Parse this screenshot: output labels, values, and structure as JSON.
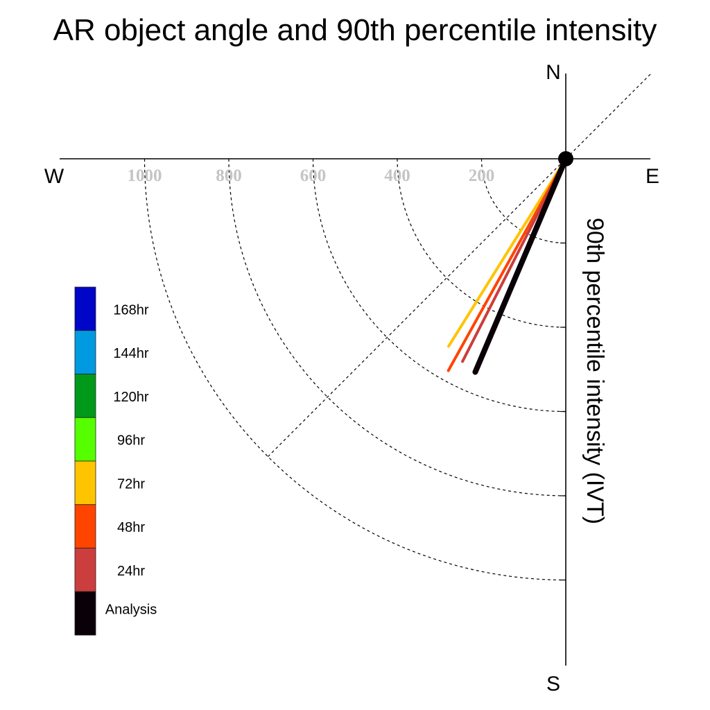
{
  "chart_data": {
    "type": "polar",
    "title": "AR object angle and 90th percentile intensity",
    "ylabel": "90th percentile intensity (IVT)",
    "compass": {
      "north": "N",
      "south": "S",
      "east": "E",
      "west": "W"
    },
    "radial_ticks": [
      200,
      400,
      600,
      800,
      1000
    ],
    "radial_range": [
      0,
      1200
    ],
    "diagonal_reference_degrees": 45,
    "series": [
      {
        "name": "72hr",
        "color": "#ffc400",
        "angle_deg": 212,
        "intensity": 525
      },
      {
        "name": "48hr",
        "color": "#ff4400",
        "angle_deg": 209,
        "intensity": 575
      },
      {
        "name": "24hr",
        "color": "#cc3d3d",
        "angle_deg": 207,
        "intensity": 540
      },
      {
        "name": "Analysis",
        "color": "#0a0008",
        "angle_deg": 203,
        "intensity": 550
      }
    ],
    "legend": [
      {
        "label": "168hr",
        "color": "#0006c8"
      },
      {
        "label": "144hr",
        "color": "#009ae0"
      },
      {
        "label": "120hr",
        "color": "#00991a"
      },
      {
        "label": "96hr",
        "color": "#55ff00"
      },
      {
        "label": "72hr",
        "color": "#ffc400"
      },
      {
        "label": "48hr",
        "color": "#ff4400"
      },
      {
        "label": "24hr",
        "color": "#cc3d3d"
      },
      {
        "label": "Analysis",
        "color": "#0a0008"
      }
    ]
  }
}
